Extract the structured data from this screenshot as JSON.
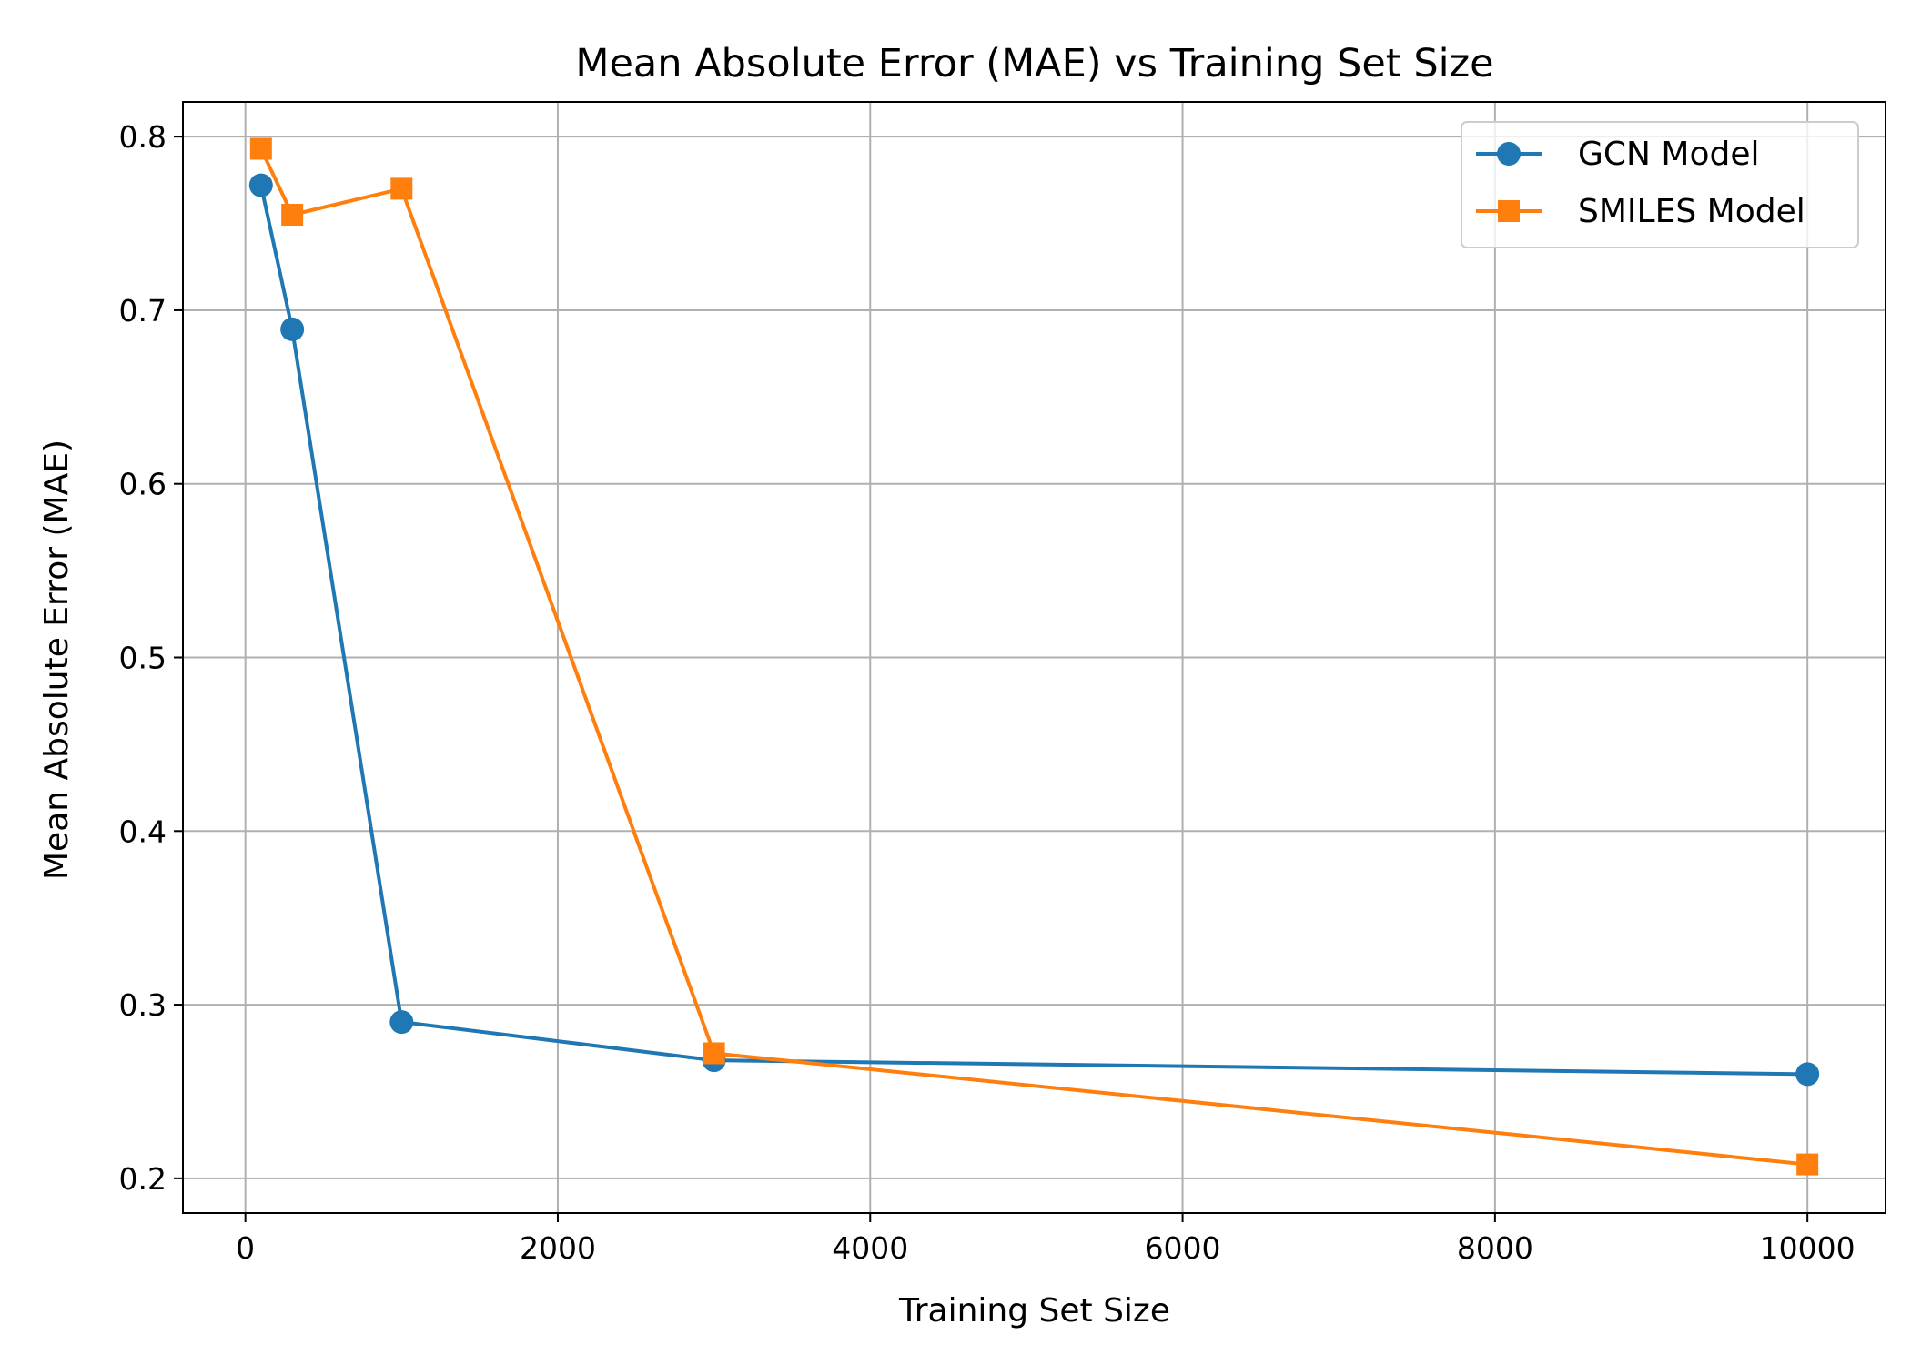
{
  "chart_data": {
    "type": "line",
    "title": "Mean Absolute Error (MAE) vs Training Set Size",
    "xlabel": "Training Set Size",
    "ylabel": "Mean Absolute Error (MAE)",
    "xlim": [
      -400,
      10500
    ],
    "ylim": [
      0.18,
      0.82
    ],
    "xticks": [
      0,
      2000,
      4000,
      6000,
      8000,
      10000
    ],
    "xtick_labels": [
      "0",
      "2000",
      "4000",
      "6000",
      "8000",
      "10000"
    ],
    "yticks": [
      0.2,
      0.3,
      0.4,
      0.5,
      0.6,
      0.7,
      0.8
    ],
    "ytick_labels": [
      "0.2",
      "0.3",
      "0.4",
      "0.5",
      "0.6",
      "0.7",
      "0.8"
    ],
    "grid": true,
    "legend_position": "top-right",
    "series": [
      {
        "name": "GCN Model",
        "color": "#1f77b4",
        "marker": "circle",
        "x": [
          100,
          300,
          1000,
          3000,
          10000
        ],
        "y": [
          0.772,
          0.689,
          0.29,
          0.268,
          0.26
        ]
      },
      {
        "name": "SMILES Model",
        "color": "#ff7f0e",
        "marker": "square",
        "x": [
          100,
          300,
          1000,
          3000,
          10000
        ],
        "y": [
          0.793,
          0.755,
          0.77,
          0.272,
          0.208
        ]
      }
    ]
  }
}
